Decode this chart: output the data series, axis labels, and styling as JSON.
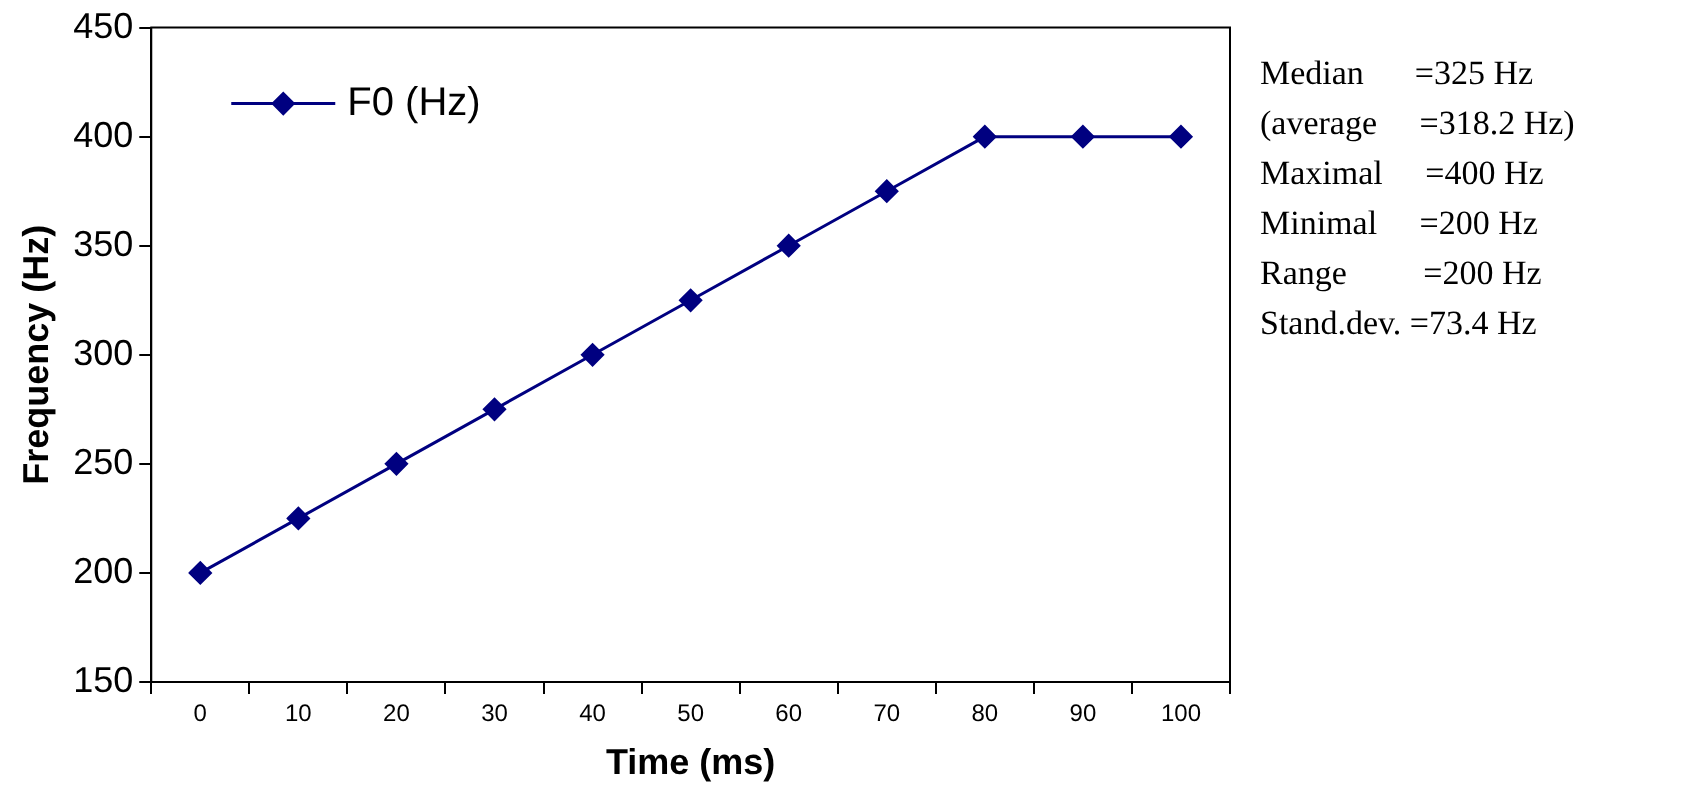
{
  "chart_data": {
    "type": "line",
    "xlabel": "Time (ms)",
    "ylabel": "Frequency (Hz)",
    "categories": [
      "0",
      "10",
      "20",
      "30",
      "40",
      "50",
      "60",
      "70",
      "80",
      "90",
      "100"
    ],
    "series": [
      {
        "name": "F0 (Hz)",
        "color": "#000080",
        "values": [
          200,
          225,
          250,
          275,
          300,
          325,
          350,
          375,
          400,
          400,
          400
        ]
      }
    ],
    "ylim": [
      150,
      450
    ],
    "yticks": [
      150,
      200,
      250,
      300,
      350,
      400,
      450
    ],
    "grid": false,
    "legend": "top left",
    "marker": "diamond",
    "line_style": "solid",
    "annotations": [
      "Median      =325 Hz",
      "(average     =318.2 Hz)",
      "Maximal     =400 Hz",
      "Minimal     =200 Hz",
      "Range         =200 Hz",
      "Stand.dev. =73.4 Hz"
    ]
  }
}
